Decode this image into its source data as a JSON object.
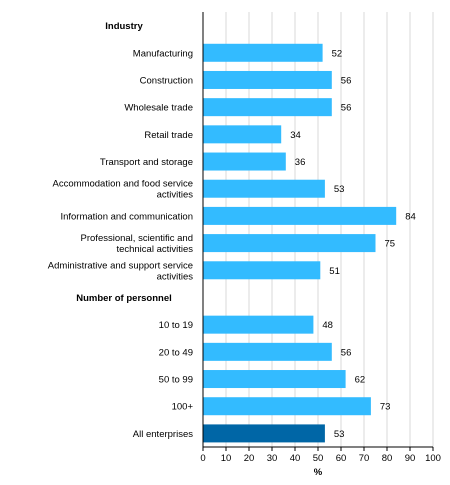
{
  "chart_data": {
    "type": "bar",
    "orientation": "horizontal",
    "groups": [
      {
        "label": "Industry",
        "categories": [
          "Manufacturing",
          "Construction",
          "Wholesale trade",
          "Retail trade",
          "Transport and storage",
          "Accommodation and food service activities",
          "Information and communication",
          "Professional, scientific and technical activities",
          "Administrative and support service activities"
        ],
        "values": [
          52,
          56,
          56,
          34,
          36,
          53,
          84,
          75,
          51
        ]
      },
      {
        "label": "Number of personnel",
        "categories": [
          "10 to 19",
          "20 to 49",
          "50 to 99",
          "100+",
          "All enterprises"
        ],
        "values": [
          48,
          56,
          62,
          73,
          53
        ]
      }
    ],
    "highlight_category": "All enterprises",
    "xlabel": "%",
    "xlim": [
      0,
      100
    ],
    "xticks": [
      0,
      10,
      20,
      30,
      40,
      50,
      60,
      70,
      80,
      90,
      100
    ],
    "grid": true,
    "colors": {
      "bar": "#33bbff",
      "highlight": "#0066a6",
      "grid": "#d9d9d9",
      "axis": "#000000"
    }
  }
}
